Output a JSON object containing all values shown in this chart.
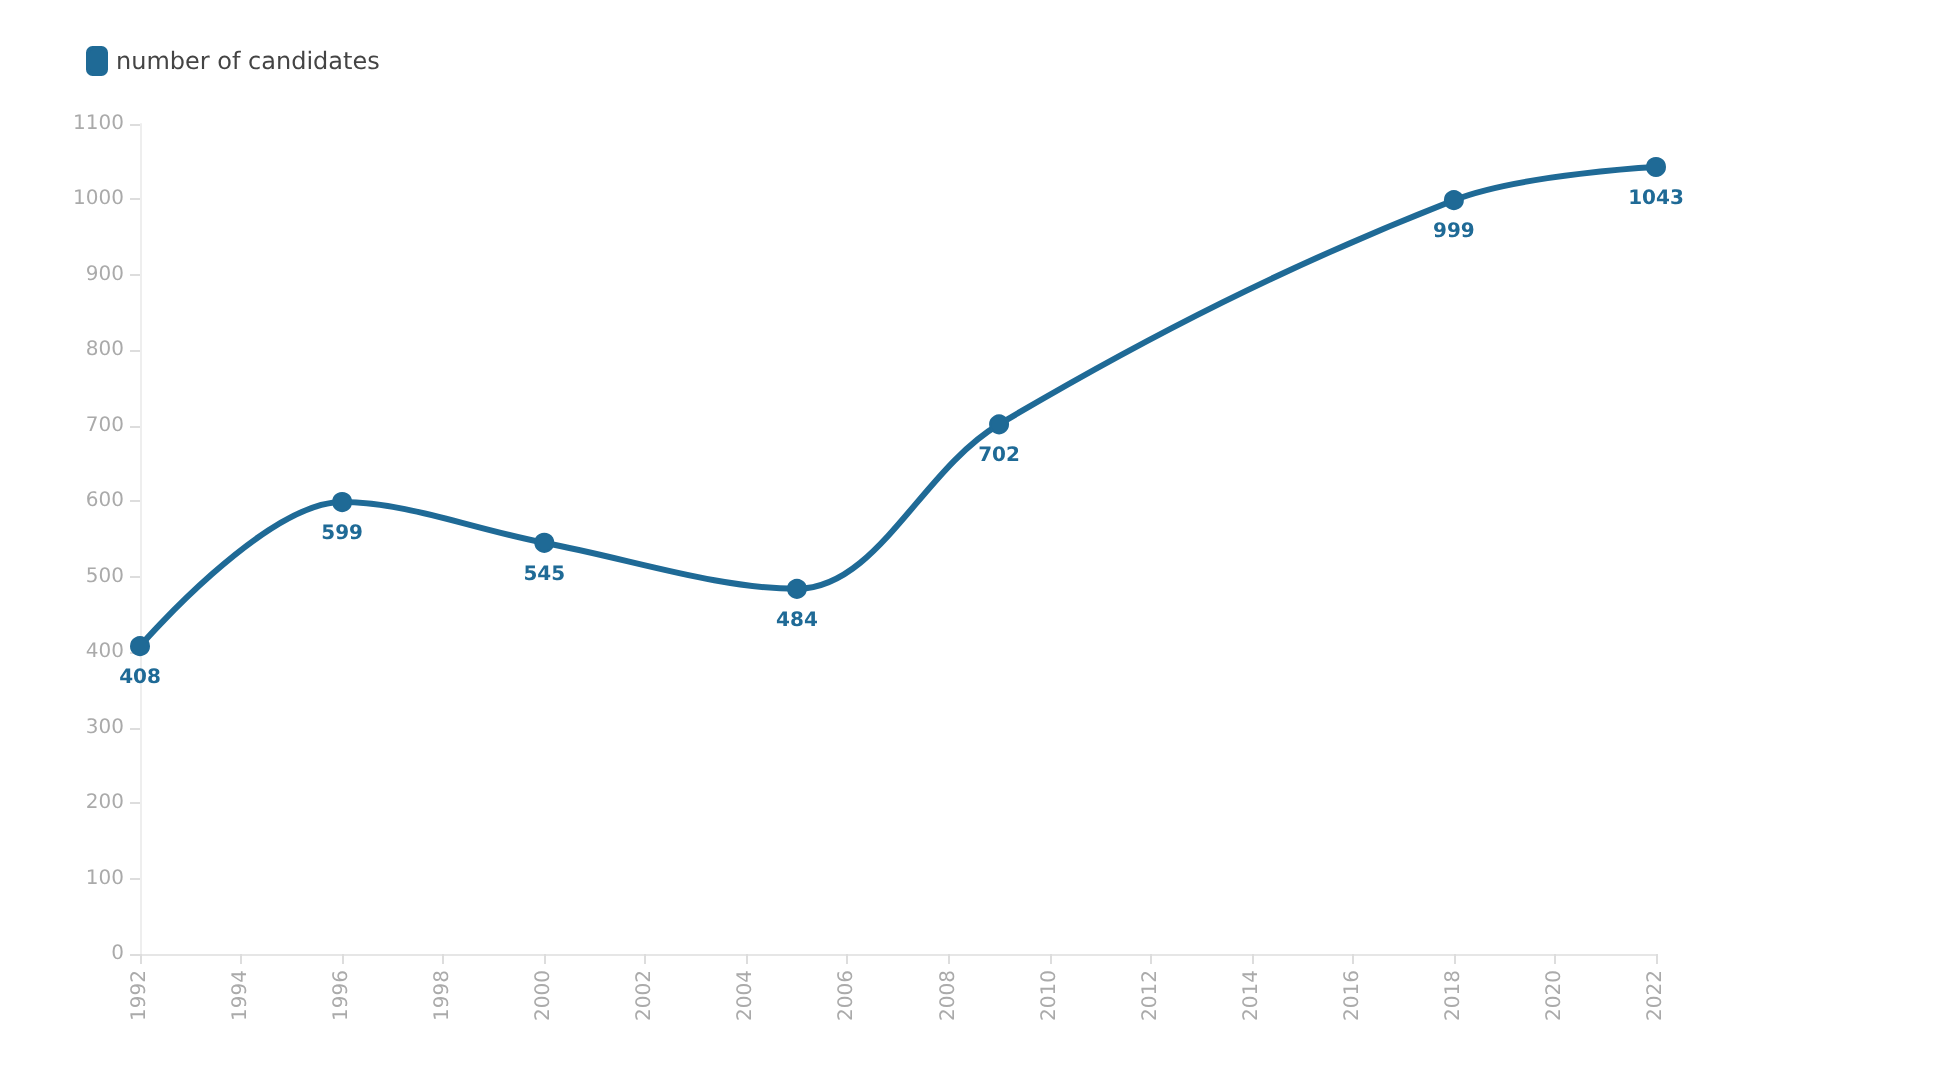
{
  "chart_data": {
    "type": "line",
    "x": [
      1992,
      1996,
      2000,
      2005,
      2009,
      2018,
      2022
    ],
    "series": [
      {
        "name": "number of candidates",
        "color": "#1f6a96",
        "values": [
          408,
          599,
          545,
          484,
          702,
          999,
          1043
        ]
      }
    ],
    "xlim": [
      1992,
      2022
    ],
    "xticks": [
      1992,
      1994,
      1996,
      1998,
      2000,
      2002,
      2004,
      2006,
      2008,
      2010,
      2012,
      2014,
      2016,
      2018,
      2020,
      2022
    ],
    "ylim": [
      0,
      1100
    ],
    "yticks": [
      0,
      100,
      200,
      300,
      400,
      500,
      600,
      700,
      800,
      900,
      1000,
      1100
    ],
    "grid": false,
    "legend": "top left",
    "marker": "circle",
    "line_style": "solid",
    "data_labels": true
  }
}
